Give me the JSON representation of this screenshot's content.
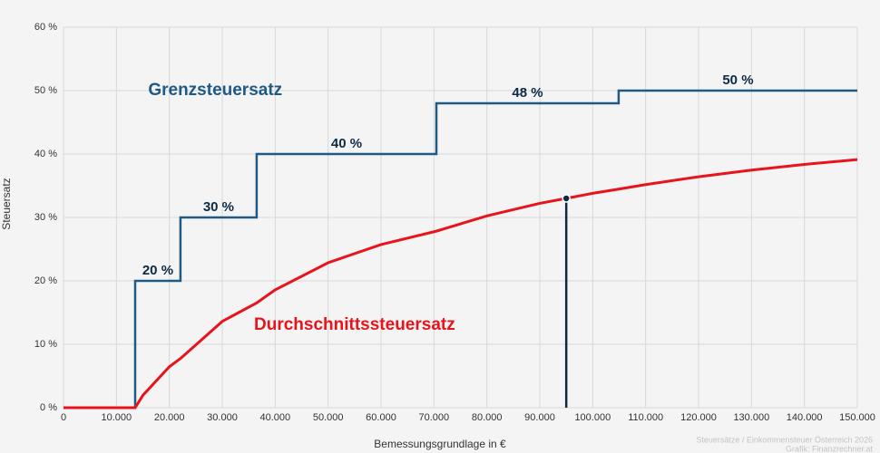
{
  "chart_data": {
    "type": "line",
    "x_label": "Bemessungsgrundlage in €",
    "y_label": "Steuersatz",
    "xlim": [
      0,
      150000
    ],
    "ylim": [
      0,
      60
    ],
    "xticks": [
      0,
      {
        "value": 10000,
        "label": "10.000"
      },
      {
        "value": 20000,
        "label": "20.000"
      },
      {
        "value": 30000,
        "label": "30.000"
      },
      {
        "value": 40000,
        "label": "40.000"
      },
      {
        "value": 50000,
        "label": "50.000"
      },
      {
        "value": 60000,
        "label": "60.000"
      },
      {
        "value": 70000,
        "label": "70.000"
      },
      {
        "value": 80000,
        "label": "80.000"
      },
      {
        "value": 90000,
        "label": "90.000"
      },
      {
        "value": 100000,
        "label": "100.000"
      },
      {
        "value": 110000,
        "label": "110.000"
      },
      {
        "value": 120000,
        "label": "120.000"
      },
      {
        "value": 130000,
        "label": "130.000"
      },
      {
        "value": 140000,
        "label": "140.000"
      },
      {
        "value": 150000,
        "label": "150.000"
      }
    ],
    "yticks": [
      {
        "value": 0,
        "label": "0 %"
      },
      {
        "value": 10,
        "label": "10 %"
      },
      {
        "value": 20,
        "label": "20 %"
      },
      {
        "value": 30,
        "label": "30 %"
      },
      {
        "value": 40,
        "label": "40 %"
      },
      {
        "value": 50,
        "label": "50 %"
      },
      {
        "value": 60,
        "label": "60 %"
      }
    ],
    "grid": true,
    "series": [
      {
        "name": "Grenzsteuersatz",
        "color": "#1f5a85",
        "x": [
          0,
          13540,
          13540,
          22100,
          22100,
          36500,
          36500,
          70460,
          70460,
          104900,
          104900,
          150000
        ],
        "values": [
          0,
          0,
          20,
          20,
          30,
          30,
          40,
          40,
          48,
          48,
          50,
          50
        ],
        "step_labels": [
          "20 %",
          "30 %",
          "40 %",
          "48 %",
          "50 %"
        ]
      },
      {
        "name": "Durchschnittssteuersatz",
        "color": "#e8141b",
        "x": [
          0,
          13540,
          15000,
          20000,
          22100,
          30000,
          36500,
          40000,
          50000,
          60000,
          70460,
          80000,
          90000,
          100000,
          104900,
          110000,
          120000,
          130000,
          140000,
          150000
        ],
        "values": [
          0,
          0,
          1.95,
          6.46,
          7.75,
          13.61,
          16.53,
          18.58,
          22.86,
          25.72,
          27.84,
          30.24,
          32.22,
          33.8,
          34.46,
          35.18,
          36.41,
          37.46,
          38.36,
          39.13
        ]
      }
    ],
    "marker": {
      "x": 95000,
      "y": 33.0,
      "color": "#0d2a45"
    },
    "footer": [
      "Steuersätze / Einkommensteuer Österreich 2026",
      "Grafik: Finanzrechner.at"
    ]
  }
}
